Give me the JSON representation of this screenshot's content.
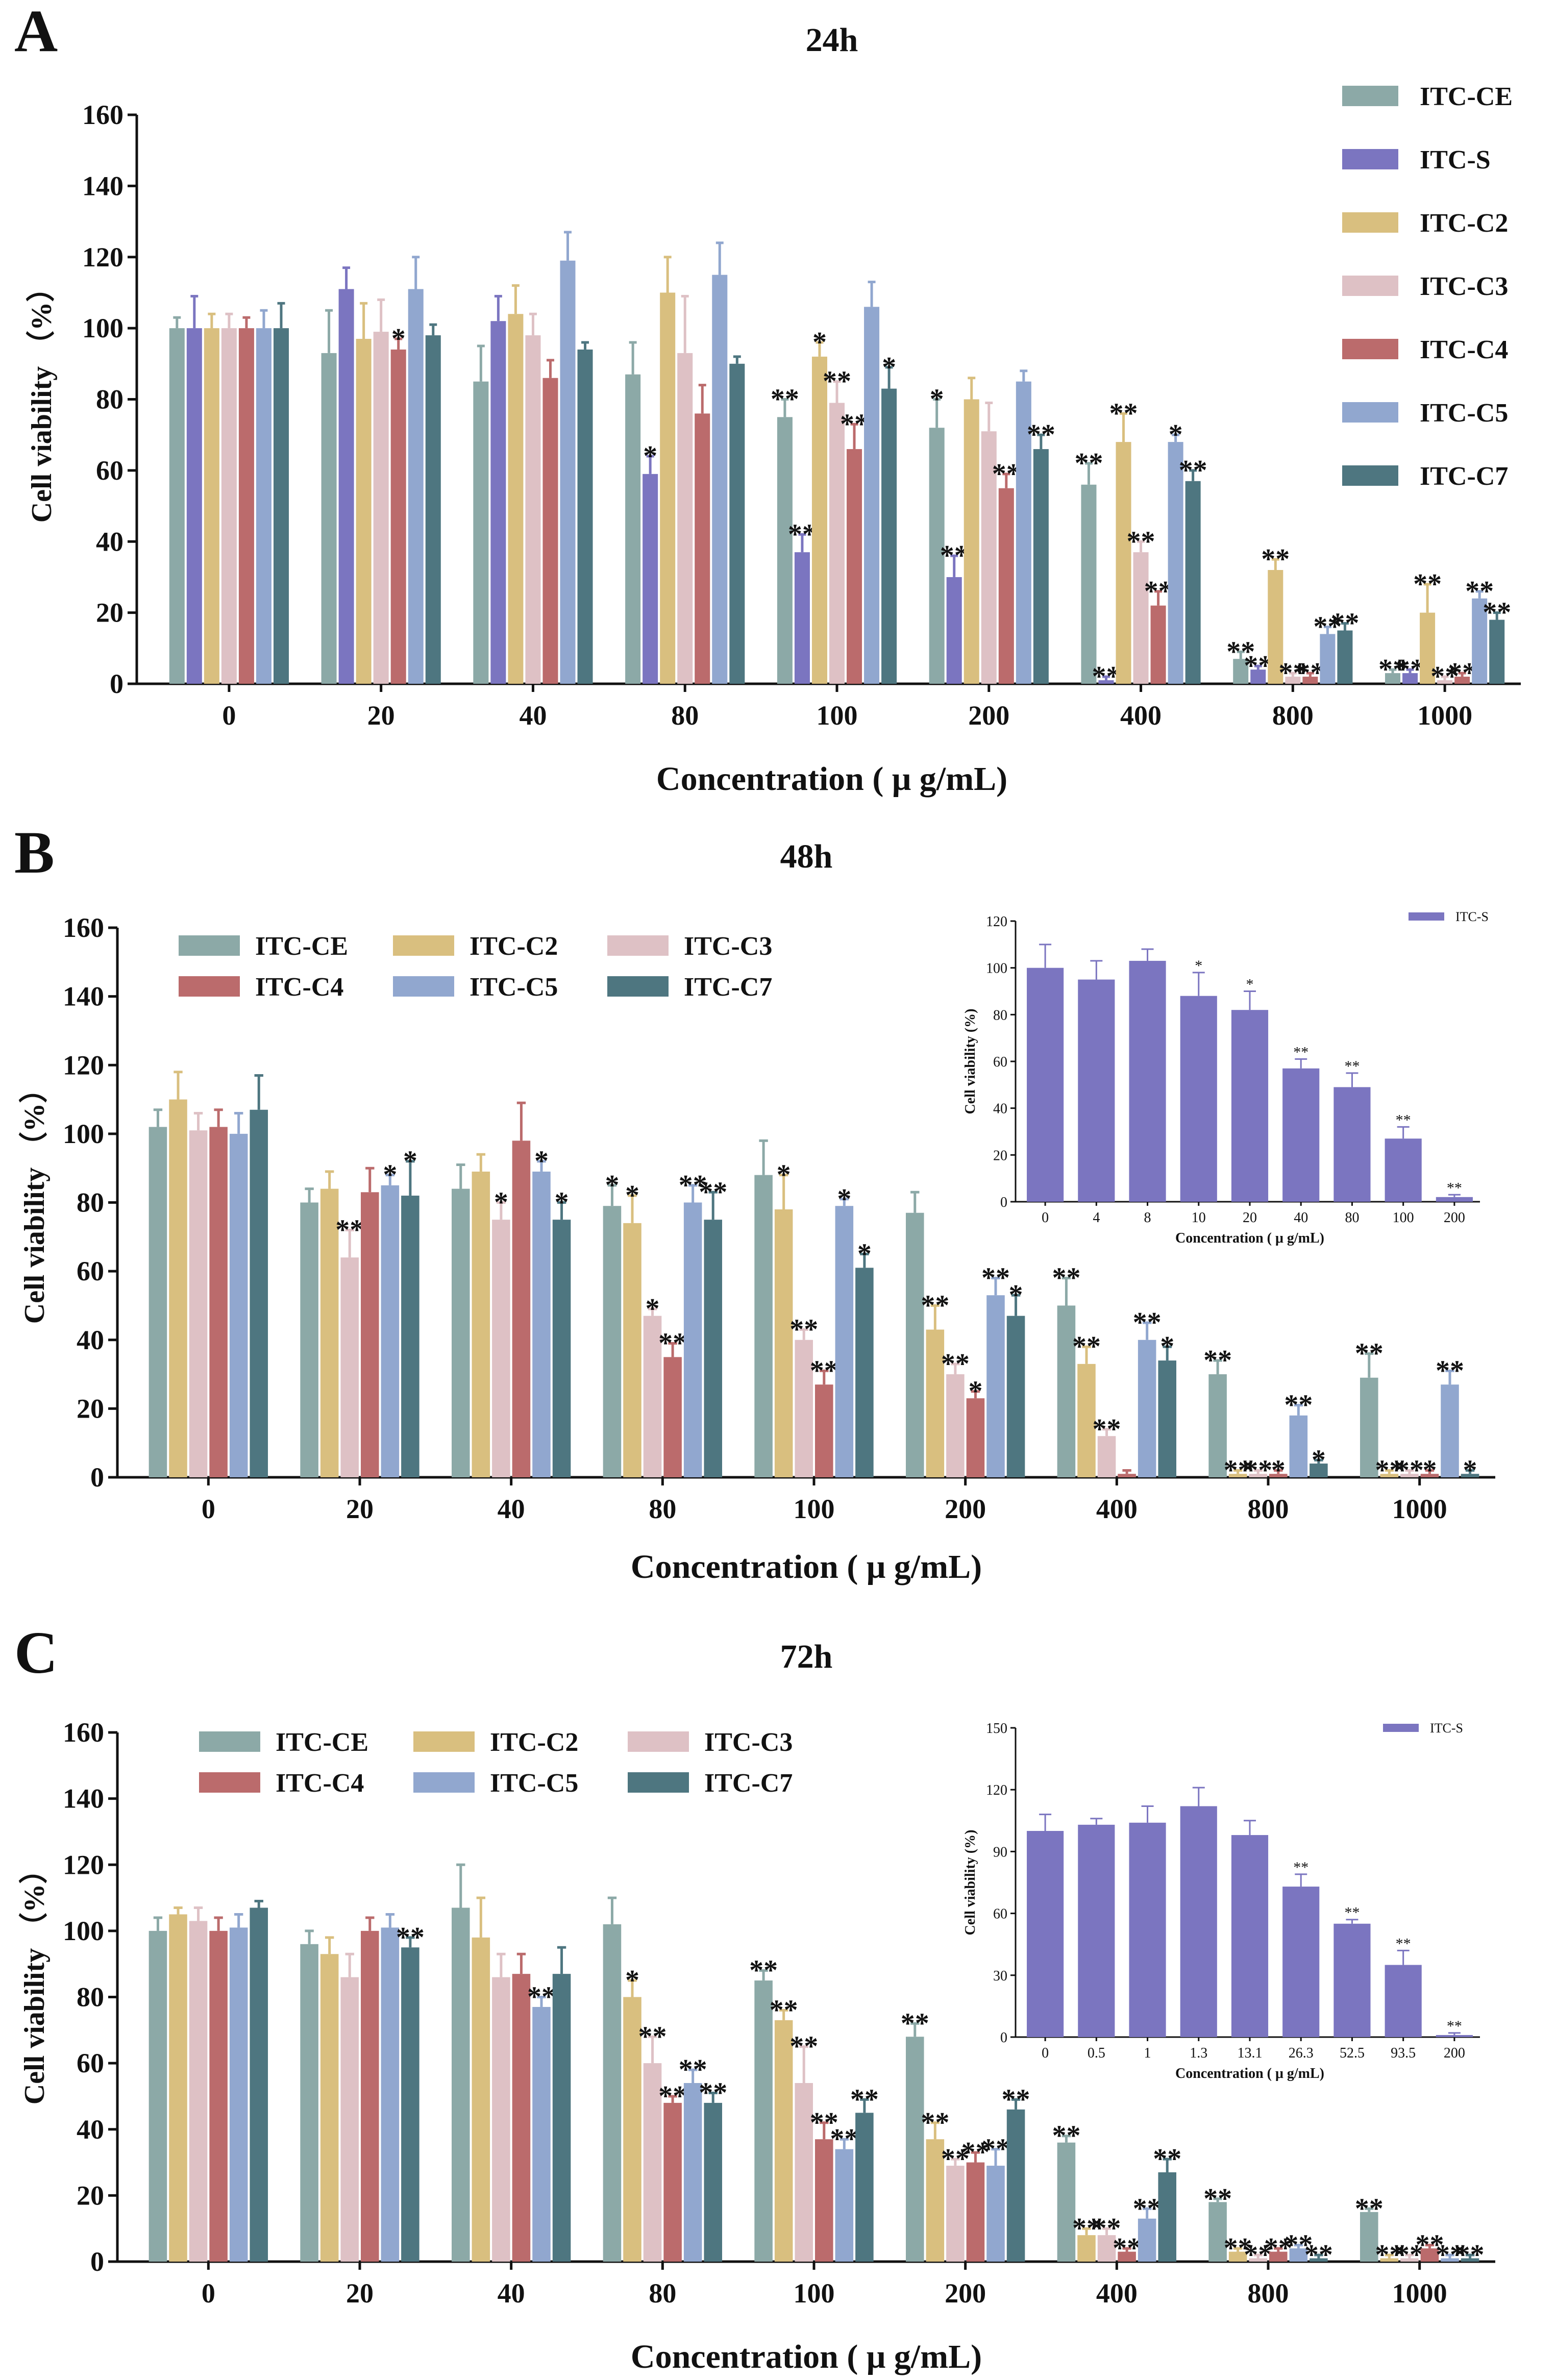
{
  "chart_data": [
    {
      "id": "A",
      "type": "bar",
      "panel_label": "A",
      "title": "24h",
      "xlabel": "Concentration ( μ g/mL)",
      "ylabel": "Cell viability （%）",
      "ylim": [
        0,
        160
      ],
      "yticks": [
        0,
        20,
        40,
        60,
        80,
        100,
        120,
        140,
        160
      ],
      "categories": [
        "0",
        "20",
        "40",
        "80",
        "100",
        "200",
        "400",
        "800",
        "1000"
      ],
      "legend_position": "right",
      "series": [
        {
          "name": "ITC-CE",
          "color": "#8ca9a7",
          "values": [
            100,
            93,
            85,
            87,
            75,
            72,
            56,
            7,
            3
          ],
          "errors": [
            3,
            12,
            10,
            9,
            5,
            8,
            6,
            2,
            1
          ],
          "sig": [
            "",
            "",
            "",
            "",
            "**",
            "*",
            "**",
            "**",
            "**"
          ]
        },
        {
          "name": "ITC-S",
          "color": "#7b75c0",
          "values": [
            100,
            111,
            102,
            59,
            37,
            30,
            1,
            4,
            3
          ],
          "errors": [
            9,
            6,
            7,
            5,
            5,
            6,
            1,
            1,
            1
          ],
          "sig": [
            "",
            "",
            "",
            "*",
            "**",
            "**",
            "**",
            "**",
            "**"
          ]
        },
        {
          "name": "ITC-C2",
          "color": "#d9bf7f",
          "values": [
            100,
            97,
            104,
            110,
            92,
            80,
            68,
            32,
            20
          ],
          "errors": [
            4,
            10,
            8,
            10,
            4,
            6,
            8,
            3,
            8
          ],
          "sig": [
            "",
            "",
            "",
            "",
            "*",
            "",
            "**",
            "**",
            "**"
          ]
        },
        {
          "name": "ITC-C3",
          "color": "#dec1c5",
          "values": [
            100,
            99,
            98,
            93,
            79,
            71,
            37,
            2,
            1
          ],
          "errors": [
            4,
            9,
            6,
            16,
            6,
            8,
            3,
            1,
            1
          ],
          "sig": [
            "",
            "",
            "",
            "",
            "**",
            "",
            "**",
            "**",
            "**"
          ]
        },
        {
          "name": "ITC-C4",
          "color": "#bb6b6c",
          "values": [
            100,
            94,
            86,
            76,
            66,
            55,
            22,
            2,
            2
          ],
          "errors": [
            3,
            3,
            5,
            8,
            7,
            4,
            4,
            1,
            1
          ],
          "sig": [
            "",
            "*",
            "",
            "",
            "**",
            "**",
            "**",
            "**",
            "**"
          ]
        },
        {
          "name": "ITC-C5",
          "color": "#91a7cf",
          "values": [
            100,
            111,
            119,
            115,
            106,
            85,
            68,
            14,
            24
          ],
          "errors": [
            5,
            9,
            8,
            9,
            7,
            3,
            2,
            2,
            2
          ],
          "sig": [
            "",
            "",
            "",
            "",
            "",
            "",
            "*",
            "**",
            "**"
          ]
        },
        {
          "name": "ITC-C7",
          "color": "#4e7680",
          "values": [
            100,
            98,
            94,
            90,
            83,
            66,
            57,
            15,
            18
          ],
          "errors": [
            7,
            3,
            2,
            2,
            6,
            4,
            3,
            2,
            2
          ],
          "sig": [
            "",
            "",
            "",
            "",
            "*",
            "**",
            "**",
            "**",
            "**"
          ]
        }
      ]
    },
    {
      "id": "B",
      "type": "bar",
      "panel_label": "B",
      "title": "48h",
      "xlabel": "Concentration ( μ g/mL)",
      "ylabel": "Cell viability （%）",
      "ylim": [
        0,
        160
      ],
      "yticks": [
        0,
        20,
        40,
        60,
        80,
        100,
        120,
        140,
        160
      ],
      "categories": [
        "0",
        "20",
        "40",
        "80",
        "100",
        "200",
        "400",
        "800",
        "1000"
      ],
      "legend_position": "top-left",
      "series": [
        {
          "name": "ITC-CE",
          "color": "#8ca9a7",
          "values": [
            102,
            80,
            84,
            79,
            88,
            77,
            50,
            30,
            29
          ],
          "errors": [
            5,
            4,
            7,
            6,
            10,
            6,
            8,
            4,
            7
          ],
          "sig": [
            "",
            "",
            "",
            "*",
            "",
            "",
            "**",
            "**",
            "**"
          ]
        },
        {
          "name": "ITC-C2",
          "color": "#d9bf7f",
          "values": [
            110,
            84,
            89,
            74,
            78,
            43,
            33,
            1,
            1
          ],
          "errors": [
            8,
            5,
            5,
            8,
            10,
            7,
            5,
            1,
            1
          ],
          "sig": [
            "",
            "",
            "",
            "*",
            "*",
            "**",
            "**",
            "**",
            "**"
          ]
        },
        {
          "name": "ITC-C3",
          "color": "#dec1c5",
          "values": [
            101,
            64,
            75,
            47,
            40,
            30,
            12,
            1,
            1
          ],
          "errors": [
            5,
            8,
            5,
            2,
            3,
            3,
            2,
            1,
            1
          ],
          "sig": [
            "",
            "**",
            "*",
            "*",
            "**",
            "**",
            "**",
            "**",
            "**"
          ]
        },
        {
          "name": "ITC-C4",
          "color": "#bb6b6c",
          "values": [
            102,
            83,
            98,
            35,
            27,
            23,
            1,
            1,
            1
          ],
          "errors": [
            5,
            7,
            11,
            4,
            4,
            2,
            1,
            1,
            1
          ],
          "sig": [
            "",
            "",
            "",
            "**",
            "**",
            "*",
            "",
            "*",
            "*"
          ]
        },
        {
          "name": "ITC-C5",
          "color": "#91a7cf",
          "values": [
            100,
            85,
            89,
            80,
            79,
            53,
            40,
            18,
            27
          ],
          "errors": [
            6,
            3,
            3,
            5,
            2,
            5,
            5,
            3,
            4
          ],
          "sig": [
            "",
            "*",
            "*",
            "**",
            "*",
            "**",
            "**",
            "**",
            "**"
          ]
        },
        {
          "name": "ITC-C7",
          "color": "#4e7680",
          "values": [
            107,
            82,
            75,
            75,
            61,
            47,
            34,
            4,
            1
          ],
          "errors": [
            10,
            10,
            5,
            8,
            4,
            6,
            4,
            1,
            1
          ],
          "sig": [
            "",
            "*",
            "*",
            "**",
            "*",
            "*",
            "*",
            "*",
            "*"
          ]
        }
      ],
      "inset": {
        "type": "bar",
        "series_name": "ITC-S",
        "color": "#7b75c0",
        "ylabel": "Cell viability (%)",
        "xlabel": "Concentration ( μ g/mL)",
        "ylim": [
          0,
          120
        ],
        "yticks": [
          0,
          20,
          40,
          60,
          80,
          100,
          120
        ],
        "categories": [
          "0",
          "4",
          "8",
          "10",
          "20",
          "40",
          "80",
          "100",
          "200"
        ],
        "values": [
          100,
          95,
          103,
          88,
          82,
          57,
          49,
          27,
          2
        ],
        "errors": [
          10,
          8,
          5,
          10,
          8,
          4,
          6,
          5,
          1
        ],
        "sig": [
          "",
          "",
          "",
          "*",
          "*",
          "**",
          "**",
          "**",
          "**"
        ]
      }
    },
    {
      "id": "C",
      "type": "bar",
      "panel_label": "C",
      "title": "72h",
      "xlabel": "Concentration ( μ g/mL)",
      "ylabel": "Cell viability （%）",
      "ylim": [
        0,
        160
      ],
      "yticks": [
        0,
        20,
        40,
        60,
        80,
        100,
        120,
        140,
        160
      ],
      "categories": [
        "0",
        "20",
        "40",
        "80",
        "100",
        "200",
        "400",
        "800",
        "1000"
      ],
      "legend_position": "top-left",
      "series": [
        {
          "name": "ITC-CE",
          "color": "#8ca9a7",
          "values": [
            100,
            96,
            107,
            102,
            85,
            68,
            36,
            18,
            15
          ],
          "errors": [
            4,
            4,
            13,
            8,
            3,
            4,
            2,
            1,
            1
          ],
          "sig": [
            "",
            "",
            "",
            "",
            "**",
            "**",
            "**",
            "**",
            "**"
          ]
        },
        {
          "name": "ITC-C2",
          "color": "#d9bf7f",
          "values": [
            105,
            93,
            98,
            80,
            73,
            37,
            8,
            3,
            1
          ],
          "errors": [
            2,
            5,
            12,
            5,
            3,
            5,
            2,
            1,
            1
          ],
          "sig": [
            "",
            "",
            "",
            "*",
            "**",
            "**",
            "**",
            "**",
            "**"
          ]
        },
        {
          "name": "ITC-C3",
          "color": "#dec1c5",
          "values": [
            103,
            86,
            86,
            60,
            54,
            29,
            8,
            1,
            1
          ],
          "errors": [
            4,
            7,
            7,
            8,
            11,
            2,
            2,
            1,
            1
          ],
          "sig": [
            "",
            "",
            "",
            "**",
            "**",
            "**",
            "**",
            "**",
            "**"
          ]
        },
        {
          "name": "ITC-C4",
          "color": "#bb6b6c",
          "values": [
            100,
            100,
            87,
            48,
            37,
            30,
            3,
            3,
            4
          ],
          "errors": [
            4,
            4,
            6,
            2,
            5,
            3,
            1,
            1,
            1
          ],
          "sig": [
            "",
            "",
            "",
            "**",
            "**",
            "**",
            "**",
            "**",
            "**"
          ]
        },
        {
          "name": "ITC-C5",
          "color": "#91a7cf",
          "values": [
            101,
            101,
            77,
            54,
            34,
            29,
            13,
            4,
            1
          ],
          "errors": [
            4,
            4,
            3,
            4,
            3,
            5,
            3,
            1,
            1
          ],
          "sig": [
            "",
            "",
            "**",
            "**",
            "**",
            "**",
            "**",
            "**",
            "**"
          ]
        },
        {
          "name": "ITC-C7",
          "color": "#4e7680",
          "values": [
            107,
            95,
            87,
            48,
            45,
            46,
            27,
            1,
            1
          ],
          "errors": [
            2,
            3,
            8,
            3,
            4,
            3,
            4,
            1,
            1
          ],
          "sig": [
            "",
            "**",
            "",
            "**",
            "**",
            "**",
            "**",
            "**",
            "**"
          ]
        }
      ],
      "inset": {
        "type": "bar",
        "series_name": "ITC-S",
        "color": "#7b75c0",
        "ylabel": "Cell viability (%)",
        "xlabel": "Concentration ( μ g/mL)",
        "ylim": [
          0,
          150
        ],
        "yticks": [
          0,
          30,
          60,
          90,
          120,
          150
        ],
        "categories": [
          "0",
          "0.5",
          "1",
          "1.3",
          "13.1",
          "26.3",
          "52.5",
          "93.5",
          "200"
        ],
        "values": [
          100,
          103,
          104,
          112,
          98,
          73,
          55,
          35,
          1
        ],
        "errors": [
          8,
          3,
          8,
          9,
          7,
          6,
          2,
          7,
          1
        ],
        "sig": [
          "",
          "",
          "",
          "",
          "",
          "**",
          "**",
          "**",
          "**"
        ]
      }
    }
  ]
}
